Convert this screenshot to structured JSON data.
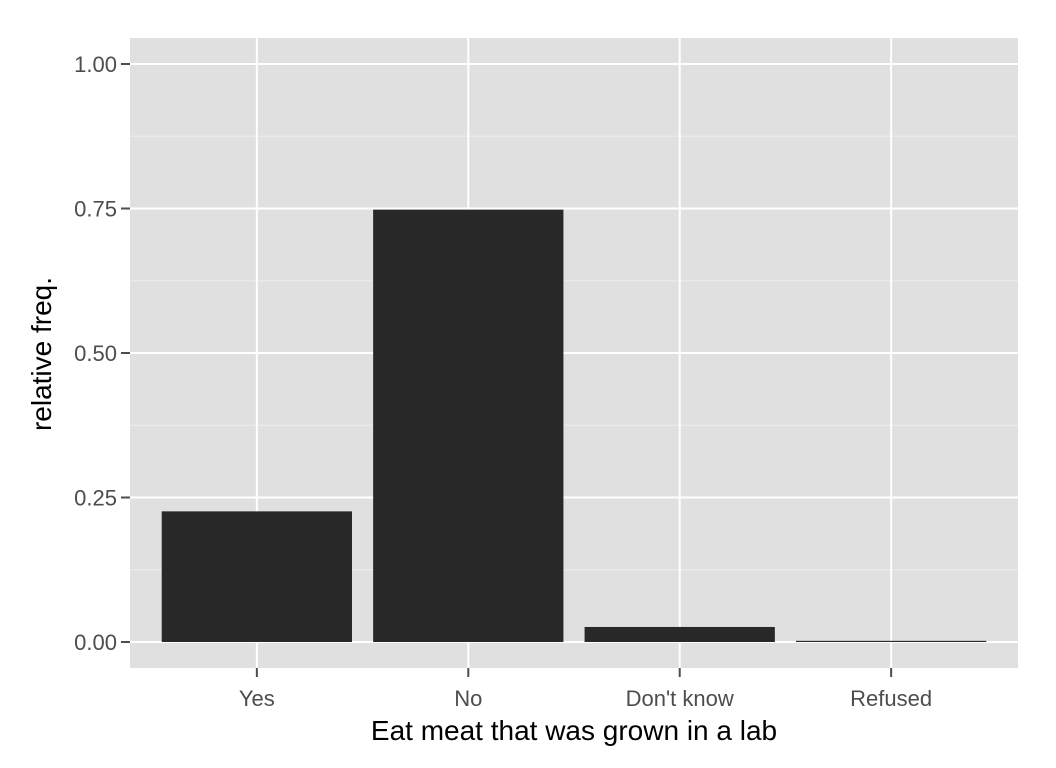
{
  "chart_data": {
    "type": "bar",
    "categories": [
      "Yes",
      "No",
      "Don't know",
      "Refused"
    ],
    "values": [
      0.226,
      0.748,
      0.026,
      0.002
    ],
    "title": "",
    "xlabel": "Eat meat that was grown in a lab",
    "ylabel": "relative freq.",
    "ylim": [
      -0.045,
      1.045
    ],
    "yticks": [
      0.0,
      0.25,
      0.5,
      0.75,
      1.0
    ],
    "ytick_labels": [
      "0.00",
      "0.25",
      "0.50",
      "0.75",
      "1.00"
    ],
    "grid": true,
    "legend": "none",
    "colors": {
      "panel_background": "#e0e0e0",
      "grid_major": "#ffffff",
      "grid_minor": "#ededed",
      "bar_fill": "#282828",
      "tick_mark": "#4d4d4d"
    }
  }
}
